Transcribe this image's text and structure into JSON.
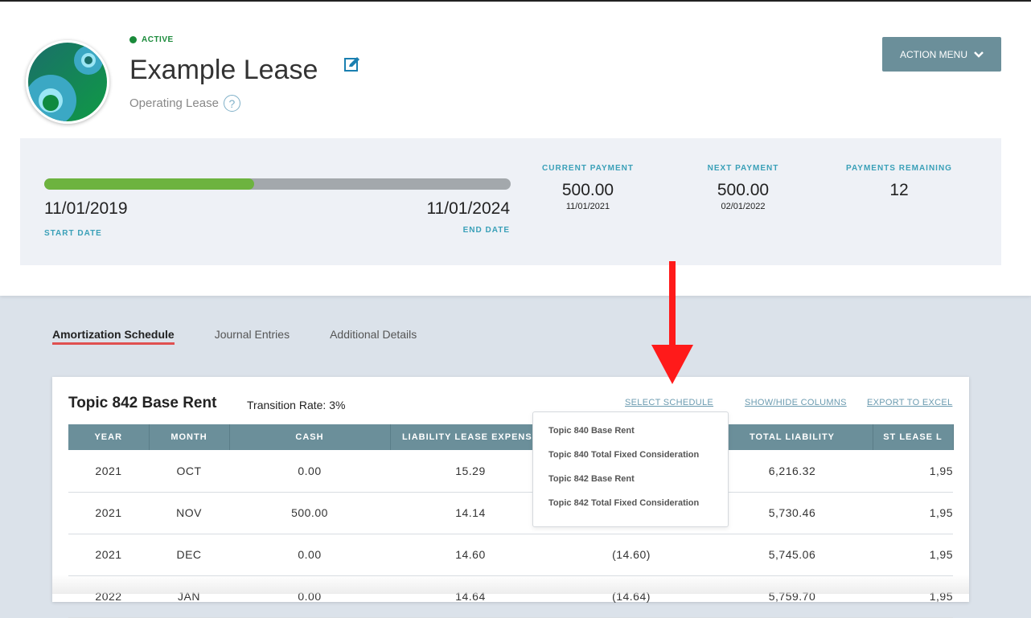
{
  "header": {
    "status": "ACTIVE",
    "title": "Example Lease",
    "subtitle": "Operating Lease",
    "help": "?",
    "action_menu": "ACTION MENU"
  },
  "summary": {
    "progress_percent": 45,
    "start_date": "11/01/2019",
    "start_label": "START DATE",
    "end_date": "11/01/2024",
    "end_label": "END DATE",
    "current_payment": {
      "label": "CURRENT PAYMENT",
      "value": "500.00",
      "date": "11/01/2021"
    },
    "next_payment": {
      "label": "NEXT PAYMENT",
      "value": "500.00",
      "date": "02/01/2022"
    },
    "payments_remaining": {
      "label": "PAYMENTS REMAINING",
      "value": "12"
    }
  },
  "tabs": [
    "Amortization Schedule",
    "Journal Entries",
    "Additional Details"
  ],
  "card": {
    "title": "Topic 842 Base Rent",
    "rate": "Transition Rate: 3%",
    "select": "SELECT SCHEDULE",
    "showhide": "SHOW/HIDE COLUMNS",
    "export": "EXPORT TO EXCEL"
  },
  "table": {
    "headers": [
      "YEAR",
      "MONTH",
      "CASH",
      "LIABILITY LEASE EXPENSE",
      "",
      "TOTAL LIABILITY",
      "ST LEASE L"
    ],
    "rows": [
      [
        "2021",
        "OCT",
        "0.00",
        "15.29",
        "",
        "6,216.32",
        "1,95"
      ],
      [
        "2021",
        "NOV",
        "500.00",
        "14.14",
        "",
        "5,730.46",
        "1,95"
      ],
      [
        "2021",
        "DEC",
        "0.00",
        "14.60",
        "(14.60)",
        "5,745.06",
        "1,95"
      ],
      [
        "2022",
        "JAN",
        "0.00",
        "14.64",
        "(14.64)",
        "5,759.70",
        "1,95"
      ]
    ]
  },
  "dropdown": [
    "Topic 840 Base Rent",
    "Topic 840 Total Fixed Consideration",
    "Topic 842 Base Rent",
    "Topic 842 Total Fixed Consideration"
  ],
  "colors": {
    "accent": "#3aa0b8",
    "header_bg": "#6b8f9a",
    "progress": "#6db33f",
    "arrow": "#ff1a1a"
  }
}
